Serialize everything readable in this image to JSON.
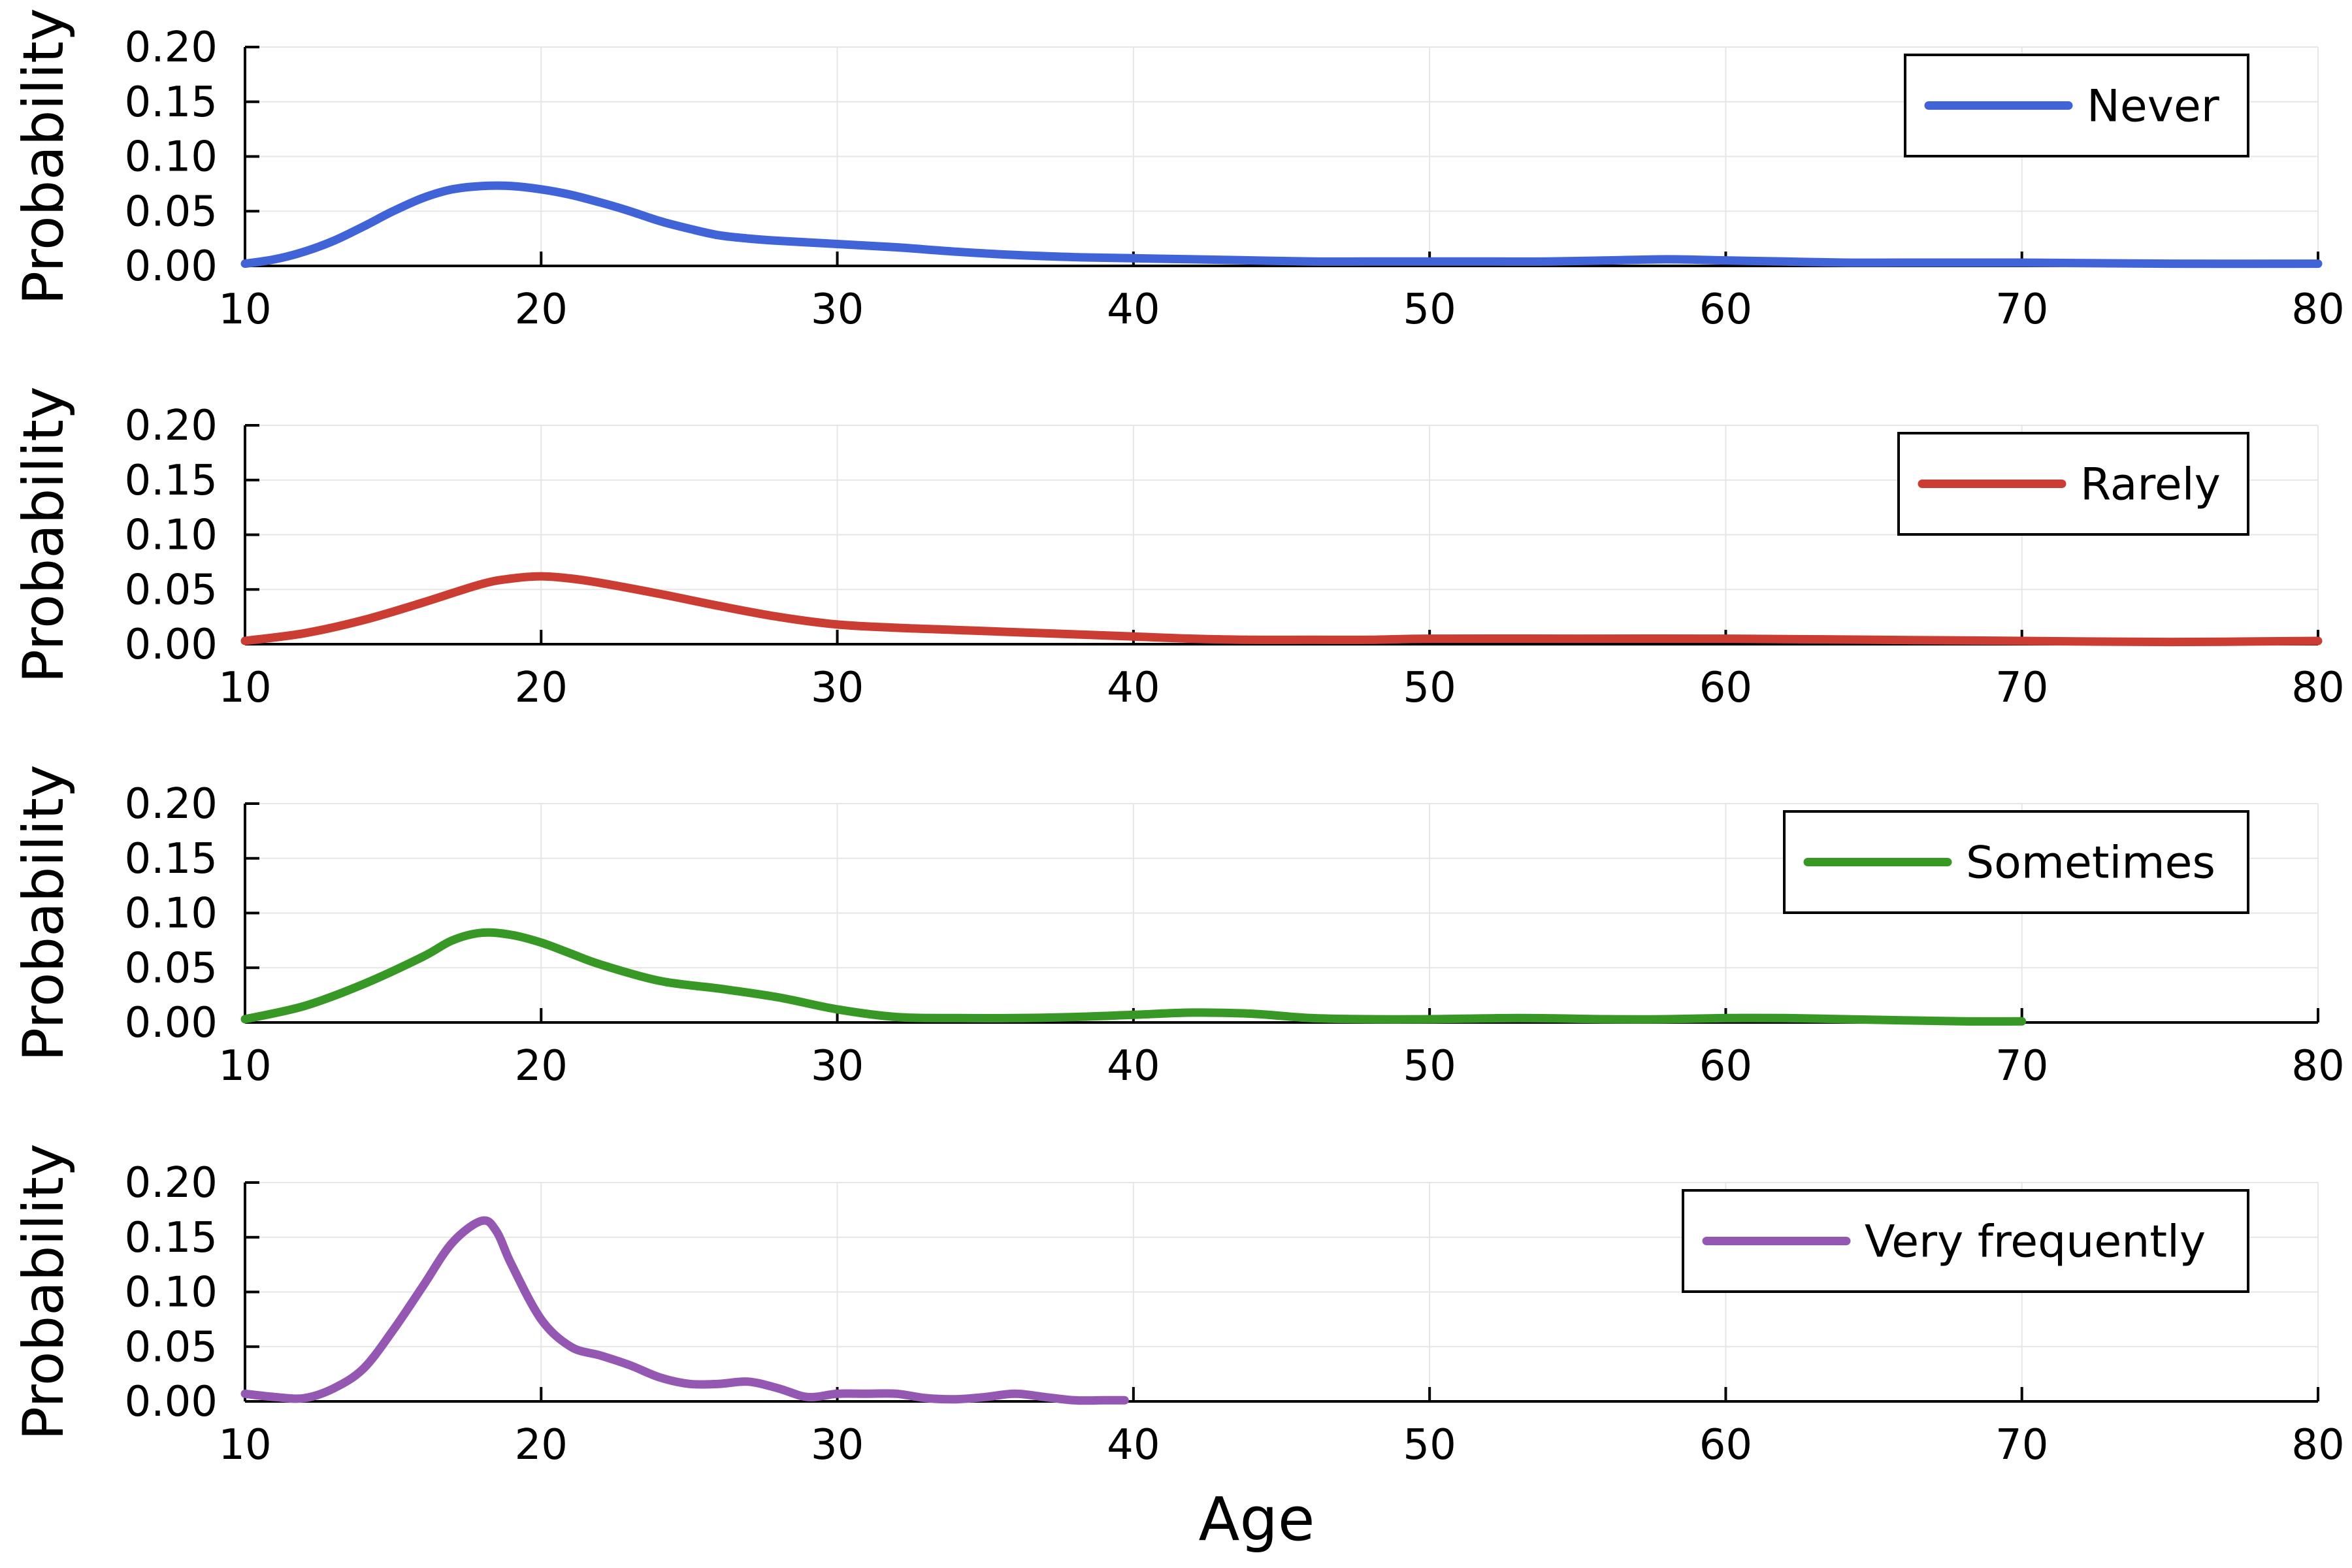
{
  "chart_data": [
    {
      "type": "line",
      "xlabel": "",
      "ylabel": "Probability",
      "xlim": [
        10,
        80
      ],
      "ylim": [
        0,
        0.2
      ],
      "xticks": [
        "10",
        "20",
        "30",
        "40",
        "50",
        "60",
        "70",
        "80"
      ],
      "yticks": [
        "0.00",
        "0.05",
        "0.10",
        "0.15",
        "0.20"
      ],
      "grid": true,
      "legend_position": "top-right",
      "series": [
        {
          "name": "Never",
          "color": "#4163d8",
          "x": [
            10,
            11,
            12,
            13,
            14,
            15,
            16,
            17,
            18,
            19,
            20,
            21,
            22,
            23,
            24,
            25,
            26,
            27,
            28,
            30,
            32,
            34,
            36,
            38,
            40,
            42,
            44,
            46,
            48,
            50,
            52,
            54,
            56,
            58,
            60,
            62,
            64,
            66,
            70,
            75,
            80
          ],
          "y": [
            0.002,
            0.006,
            0.013,
            0.023,
            0.036,
            0.05,
            0.062,
            0.07,
            0.073,
            0.073,
            0.07,
            0.065,
            0.058,
            0.05,
            0.041,
            0.034,
            0.028,
            0.025,
            0.023,
            0.02,
            0.017,
            0.013,
            0.01,
            0.008,
            0.007,
            0.006,
            0.005,
            0.004,
            0.004,
            0.004,
            0.004,
            0.004,
            0.005,
            0.006,
            0.005,
            0.004,
            0.003,
            0.003,
            0.003,
            0.002,
            0.002
          ]
        }
      ]
    },
    {
      "type": "line",
      "xlabel": "",
      "ylabel": "Probability",
      "xlim": [
        10,
        80
      ],
      "ylim": [
        0,
        0.2
      ],
      "xticks": [
        "10",
        "20",
        "30",
        "40",
        "50",
        "60",
        "70",
        "80"
      ],
      "yticks": [
        "0.00",
        "0.05",
        "0.10",
        "0.15",
        "0.20"
      ],
      "grid": true,
      "legend_position": "top-right",
      "series": [
        {
          "name": "Rarely",
          "color": "#cb3c33",
          "x": [
            10,
            12,
            14,
            16,
            18,
            19,
            20,
            21,
            22,
            24,
            26,
            28,
            30,
            32,
            34,
            36,
            38,
            40,
            42,
            44,
            46,
            48,
            50,
            55,
            60,
            65,
            70,
            75,
            80
          ],
          "y": [
            0.003,
            0.01,
            0.022,
            0.038,
            0.055,
            0.06,
            0.062,
            0.06,
            0.056,
            0.046,
            0.035,
            0.025,
            0.018,
            0.015,
            0.013,
            0.011,
            0.009,
            0.007,
            0.005,
            0.004,
            0.004,
            0.004,
            0.005,
            0.005,
            0.005,
            0.004,
            0.003,
            0.002,
            0.003
          ]
        }
      ]
    },
    {
      "type": "line",
      "xlabel": "",
      "ylabel": "Probability",
      "xlim": [
        10,
        80
      ],
      "ylim": [
        0,
        0.2
      ],
      "xticks": [
        "10",
        "20",
        "30",
        "40",
        "50",
        "60",
        "70",
        "80"
      ],
      "yticks": [
        "0.00",
        "0.05",
        "0.10",
        "0.15",
        "0.20"
      ],
      "grid": true,
      "legend_position": "top-right",
      "series": [
        {
          "name": "Sometimes",
          "color": "#389826",
          "x": [
            10,
            12,
            14,
            16,
            17,
            18,
            19,
            20,
            21,
            22,
            24,
            26,
            28,
            30,
            32,
            34,
            36,
            38,
            40,
            42,
            44,
            46,
            48,
            50,
            53,
            56,
            58,
            60,
            62,
            64,
            66,
            68,
            70
          ],
          "y": [
            0.003,
            0.015,
            0.035,
            0.06,
            0.075,
            0.082,
            0.08,
            0.073,
            0.063,
            0.053,
            0.038,
            0.031,
            0.023,
            0.012,
            0.005,
            0.004,
            0.004,
            0.005,
            0.007,
            0.009,
            0.008,
            0.004,
            0.003,
            0.003,
            0.004,
            0.003,
            0.003,
            0.004,
            0.004,
            0.003,
            0.002,
            0.001,
            0.001
          ]
        }
      ]
    },
    {
      "type": "line",
      "xlabel": "Age",
      "ylabel": "Probability",
      "xlim": [
        10,
        80
      ],
      "ylim": [
        0,
        0.2
      ],
      "xticks": [
        "10",
        "20",
        "30",
        "40",
        "50",
        "60",
        "70",
        "80"
      ],
      "yticks": [
        "0.00",
        "0.05",
        "0.10",
        "0.15",
        "0.20"
      ],
      "grid": true,
      "legend_position": "top-right",
      "series": [
        {
          "name": "Very frequently",
          "color": "#9558b2",
          "x": [
            10,
            11,
            12,
            13,
            14,
            15,
            16,
            17,
            18,
            18.5,
            19,
            20,
            21,
            22,
            23,
            24,
            25,
            26,
            27,
            28,
            29,
            30,
            31,
            32,
            33,
            34,
            35,
            36,
            37,
            38,
            39,
            39.7
          ],
          "y": [
            0.007,
            0.004,
            0.003,
            0.012,
            0.03,
            0.065,
            0.105,
            0.145,
            0.165,
            0.155,
            0.125,
            0.075,
            0.05,
            0.042,
            0.033,
            0.022,
            0.016,
            0.016,
            0.018,
            0.012,
            0.004,
            0.007,
            0.007,
            0.007,
            0.003,
            0.002,
            0.004,
            0.007,
            0.004,
            0.001,
            0.001,
            0.001
          ]
        }
      ]
    }
  ]
}
